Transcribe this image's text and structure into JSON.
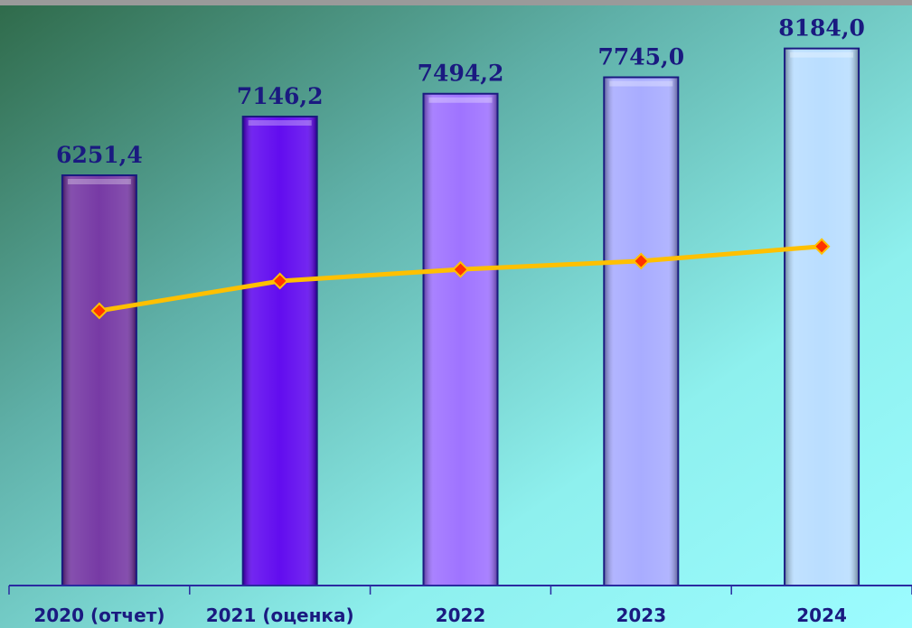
{
  "chart_data": {
    "type": "bar",
    "categories": [
      "2020 (отчет)",
      "2021 (оценка)",
      "2022",
      "2023",
      "2024"
    ],
    "values": [
      6251.4,
      7146.2,
      7494.2,
      7745.0,
      8184.0
    ],
    "value_labels": [
      "6251,4",
      "7146,2",
      "7494,2",
      "7745,0",
      "8184,0"
    ],
    "colors": [
      "#7030a0",
      "#5a00ee",
      "#9a6cff",
      "#a4a8ff",
      "#b6dcff"
    ],
    "ylim": [
      0,
      8372
    ],
    "line": {
      "color": "#ffc000",
      "marker_color": "#ff3300",
      "axis": "y2"
    },
    "y2lim": [
      -2000,
      14500
    ]
  }
}
